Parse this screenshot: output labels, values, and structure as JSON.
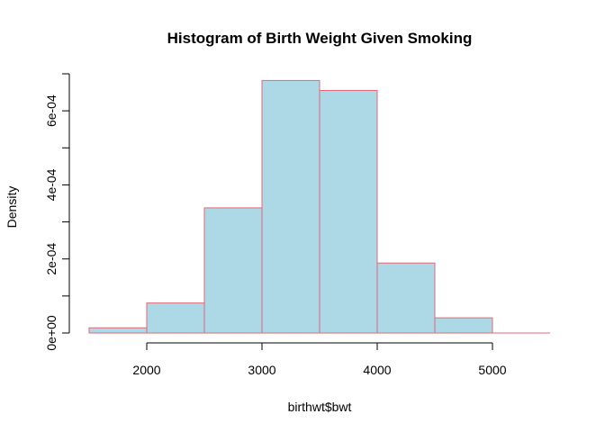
{
  "chart_data": {
    "type": "bar",
    "title": "Histogram of Birth Weight Given Smoking",
    "xlabel": "birthwt$bwt",
    "ylabel": "Density",
    "bins": [
      {
        "from": 1500,
        "to": 2000,
        "density": 1.4e-05
      },
      {
        "from": 2000,
        "to": 2500,
        "density": 8.1e-05
      },
      {
        "from": 2500,
        "to": 3000,
        "density": 0.000338
      },
      {
        "from": 3000,
        "to": 3500,
        "density": 0.000682
      },
      {
        "from": 3500,
        "to": 4000,
        "density": 0.000655
      },
      {
        "from": 4000,
        "to": 4500,
        "density": 0.000189
      },
      {
        "from": 4500,
        "to": 5000,
        "density": 4.1e-05
      },
      {
        "from": 5000,
        "to": 5500,
        "density": 0.0
      }
    ],
    "x_ticks": [
      2000,
      3000,
      4000,
      5000
    ],
    "x_tick_labels": [
      "2000",
      "3000",
      "4000",
      "5000"
    ],
    "y_major_ticks": [
      0,
      0.0002,
      0.0004,
      0.0006
    ],
    "y_tick_labels": [
      "0e+00",
      "2e-04",
      "4e-04",
      "6e-04"
    ],
    "y_minor_ticks": [
      0.0001,
      0.0003,
      0.0005,
      0.0007
    ],
    "xlim": [
      1500,
      5500
    ],
    "ylim": [
      0,
      0.0007
    ],
    "bar_fill": "#add8e6",
    "bar_border": "#e06977",
    "grid": false
  }
}
